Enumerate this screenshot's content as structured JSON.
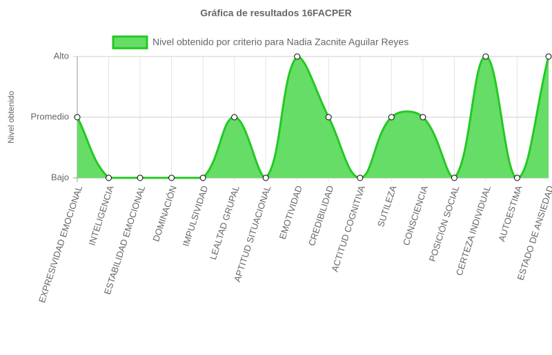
{
  "chart_data": {
    "type": "line",
    "title": "Gráfica de resultados 16FACPER",
    "y_label": "Nivel obtenido",
    "categories": [
      "EXPRESIVIDAD EMOCIONAL",
      "INTELIGENCIA",
      "ESTABILIDAD EMOCIONAL",
      "DOMINACIÓN",
      "IMPULSIVIDAD",
      "LEALTAD GRUPAL",
      "APTITUD SITUACIONAL",
      "EMOTIVIDAD",
      "CREDIBILIDAD",
      "ACTITUD COGNITIVA",
      "SUTILEZA",
      "CONSCIENCIA",
      "POSICIÓN SOCIAL",
      "CERTEZA INDIVIDUAL",
      "AUTOESTIMA",
      "ESTADO DE ANSIEDAD"
    ],
    "series": [
      {
        "name": "Nivel obtenido por criterio para Nadia Zacnite Aguilar Reyes",
        "color": "#22c922",
        "fill": "#66dd66",
        "values": [
          2,
          1,
          1,
          1,
          1,
          2,
          1,
          3,
          2,
          1,
          2,
          2,
          1,
          3,
          1,
          3
        ]
      }
    ],
    "ylim": [
      1,
      3
    ],
    "yticks": [
      {
        "value": 1,
        "label": "Bajo"
      },
      {
        "value": 2,
        "label": "Promedio"
      },
      {
        "value": 3,
        "label": "Alto"
      }
    ],
    "grid": true,
    "legend": "top"
  }
}
